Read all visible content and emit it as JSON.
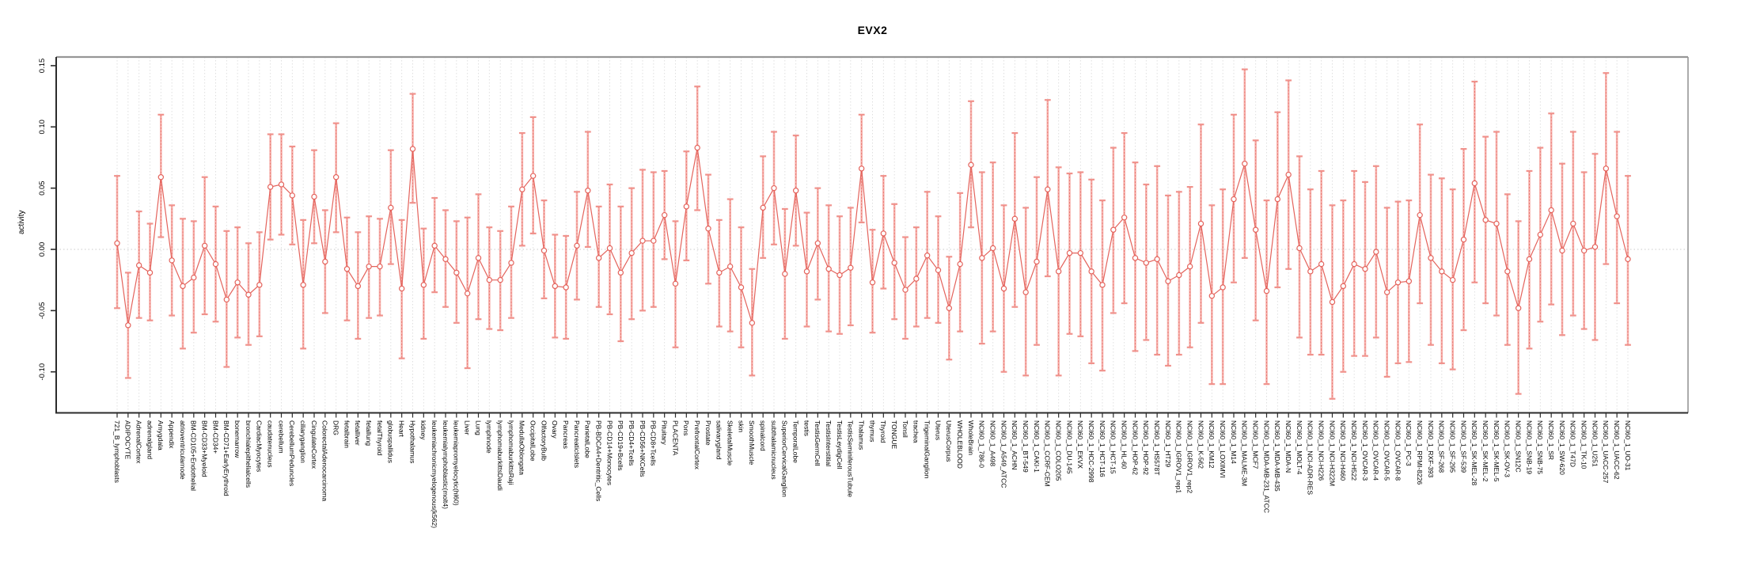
{
  "title": "EVX2",
  "chart_data": {
    "type": "line",
    "title": "EVX2",
    "xlabel": "",
    "ylabel": "activity",
    "ylim": [
      -0.142,
      0.157
    ],
    "y_ticks": [
      -0.1,
      -0.05,
      0.0,
      0.05,
      0.1,
      0.15
    ],
    "y_tick_labels": [
      "-0.10",
      "-0.05",
      "0.00",
      "0.05",
      "0.10",
      "0.15"
    ],
    "legend": "none",
    "grid": "vertical dotted gridline per category; dotted horizontal line at zero",
    "point_style": "open-circle with error bars",
    "colors": {
      "series": "#e4635c",
      "error_bar_stem": "#f6b0ab",
      "error_bar_cap": "#f0928c",
      "gridline": "#dcdcdc",
      "zero_line": "#c9c9c9",
      "axis": "#2b2b2b",
      "border": "#969696",
      "background": "#ffffff"
    },
    "categories": [
      "721_B_lymphoblasts",
      "ADIPOCYTE",
      "AdrenalCortex",
      "adrenalgland",
      "Amygdala",
      "Appendix",
      "atrioventricularnode",
      "BM-CD105+Endothelial",
      "BM-CD33+Myeloid",
      "BM-CD34+",
      "BM-CD71+EarlyErythroid",
      "bonemarrow",
      "bronchialepithelialcells",
      "CardiacMyocytes",
      "caudatenucleus",
      "cerebellum",
      "CerebellumPeduncles",
      "ciliaryganglion",
      "CingulateCortex",
      "ColorectalAdenocarcinoma",
      "DRG",
      "fetalbrain",
      "fetalliver",
      "fetallung",
      "fetalThyroid",
      "globuspallidus",
      "Heart",
      "Hypothalamus",
      "kidney",
      "leukemiachronicmyelogenous(k562)",
      "leukemialymphoblastic(molt4)",
      "leukemiapromyelocytic(hl60)",
      "Liver",
      "Lung",
      "lymphnode",
      "lymphomaburkittsDaudi",
      "lymphomaburkittsRaji",
      "MedullaOblongata",
      "OccipitalLobe",
      "OlfactoryBulb",
      "Ovary",
      "Pancreas",
      "PancreaticIslets",
      "ParietalLobe",
      "PB-BDCA4+Dentritic_Cells",
      "PB-CD14+Monocytes",
      "PB-CD19+Bcells",
      "PB-CD4+Tcells",
      "PB-CD56+NKCells",
      "PB-CD8+Tcells",
      "Pituitary",
      "PLACENTA",
      "Pons",
      "PrefrontalCortex",
      "Prostate",
      "salivarygland",
      "SkeletalMuscle",
      "skin",
      "SmoothMuscle",
      "spinalcord",
      "subthalamicnucleus",
      "SuperiorCervicalGanglion",
      "TemporalLobe",
      "testis",
      "TestisGermCell",
      "TestisInterstitial",
      "TestisLeydigCell",
      "TestisSeminiferousTubule",
      "Thalamus",
      "thymus",
      "Thyroid",
      "TONGUE",
      "Tonsil",
      "trachea",
      "TrigeminalGanglion",
      "Uterus",
      "UterusCorpus",
      "WHOLEBLOOD",
      "WholeBrain",
      "NCI60_1_786-0",
      "NCI60_1_A498",
      "NCI60_1_A549_ATCC",
      "NCI60_1_ACHN",
      "NCI60_1_BT-549",
      "NCI60_1_CAKI-1",
      "NCI60_1_CCRF-CEM",
      "NCI60_1_COLO205",
      "NCI60_1_DU-145",
      "NCI60_1_EKVX",
      "NCI60_1_HCC-2998",
      "NCI60_1_HCT-116",
      "NCI60_1_HCT-15",
      "NCI60_1_HL-60",
      "NCI60_1_HOP-62",
      "NCI60_1_HOP-92",
      "NCI60_1_HS578T",
      "NCI60_1_HT29",
      "NCI60_1_IGROV1_rep1",
      "NCI60_1_IGROV1_rep2",
      "NCI60_1_K-562",
      "NCI60_1_KM12",
      "NCI60_1_LOXIMVI",
      "NCI60_1_M14",
      "NCI60_1_MALME-3M",
      "NCI60_1_MCF7",
      "NCI60_1_MDA-MB-231_ATCC",
      "NCI60_1_MDA-MB-435",
      "NCI60_1_MDA-N",
      "NCI60_1_MOLT-4",
      "NCI60_1_NCI-ADR-RES",
      "NCI60_1_NCI-H226",
      "NCI60_1_NCI-H322M",
      "NCI60_1_NCI-H460",
      "NCI60_1_NCI-H522",
      "NCI60_1_OVCAR-3",
      "NCI60_1_OVCAR-4",
      "NCI60_1_OVCAR-5",
      "NCI60_1_OVCAR-8",
      "NCI60_1_PC-3",
      "NCI60_1_RPMI-8226",
      "NCI60_1_RXF-393",
      "NCI60_1_SF-268",
      "NCI60_1_SF-295",
      "NCI60_1_SF-539",
      "NCI60_1_SK-MEL-28",
      "NCI60_1_SK-MEL-2",
      "NCI60_1_SK-MEL-5",
      "NCI60_1_SK-OV-3",
      "NCI60_1_SN12C",
      "NCI60_1_SNB-19",
      "NCI60_1_SNB-75",
      "NCI60_1_SR",
      "NCI60_1_SW-620",
      "NCI60_1_T47D",
      "NCI60_1_TK-10",
      "NCI60_1_U251",
      "NCI60_1_UACC-257",
      "NCI60_1_UACC-62",
      "NCI60_1_UO-31"
    ],
    "series": [
      {
        "name": "activity",
        "values": [
          0.005,
          -0.062,
          -0.013,
          -0.019,
          0.059,
          -0.009,
          -0.03,
          -0.023,
          0.003,
          -0.012,
          -0.041,
          -0.027,
          -0.037,
          -0.029,
          0.051,
          0.053,
          0.044,
          -0.029,
          0.043,
          -0.01,
          0.059,
          -0.016,
          -0.03,
          -0.014,
          -0.014,
          0.034,
          -0.032,
          0.082,
          -0.029,
          0.003,
          -0.008,
          -0.019,
          -0.036,
          -0.007,
          -0.025,
          -0.025,
          -0.011,
          0.049,
          0.06,
          -0.001,
          -0.03,
          -0.031,
          0.003,
          0.048,
          -0.007,
          0.001,
          -0.019,
          -0.003,
          0.007,
          0.007,
          0.028,
          -0.028,
          0.035,
          0.083,
          0.017,
          -0.019,
          -0.014,
          -0.031,
          -0.06,
          0.034,
          0.05,
          -0.02,
          0.048,
          -0.018,
          0.005,
          -0.016,
          -0.021,
          -0.015,
          0.066,
          -0.027,
          0.013,
          -0.011,
          -0.033,
          -0.024,
          -0.005,
          -0.017,
          -0.048,
          -0.012,
          0.069,
          -0.007,
          0.001,
          -0.032,
          0.025,
          -0.035,
          -0.01,
          0.049,
          -0.018,
          -0.003,
          -0.003,
          -0.018,
          -0.029,
          0.016,
          0.026,
          -0.007,
          -0.011,
          -0.008,
          -0.026,
          -0.021,
          -0.014,
          0.021,
          -0.038,
          -0.031,
          0.041,
          0.07,
          0.016,
          -0.034,
          0.041,
          0.061,
          0.001,
          -0.018,
          -0.012,
          -0.043,
          -0.03,
          -0.012,
          -0.016,
          -0.002,
          -0.035,
          -0.027,
          -0.026,
          0.028,
          -0.007,
          -0.018,
          -0.025,
          0.008,
          0.054,
          0.024,
          0.021,
          -0.018,
          -0.048,
          -0.008,
          0.012,
          0.032,
          -0.001,
          0.021,
          -0.001,
          0.002,
          0.066,
          0.027,
          -0.008
        ],
        "error_low": [
          -0.048,
          -0.105,
          -0.056,
          -0.058,
          0.01,
          -0.054,
          -0.081,
          -0.068,
          -0.053,
          -0.059,
          -0.096,
          -0.072,
          -0.078,
          -0.071,
          0.008,
          0.012,
          0.004,
          -0.081,
          0.005,
          -0.052,
          0.014,
          -0.058,
          -0.073,
          -0.056,
          -0.054,
          -0.012,
          -0.089,
          0.038,
          -0.073,
          -0.035,
          -0.047,
          -0.06,
          -0.097,
          -0.057,
          -0.065,
          -0.066,
          -0.056,
          0.003,
          0.013,
          -0.04,
          -0.072,
          -0.073,
          -0.041,
          0.002,
          -0.047,
          -0.053,
          -0.075,
          -0.057,
          -0.05,
          -0.047,
          -0.008,
          -0.08,
          -0.009,
          0.032,
          -0.028,
          -0.063,
          -0.067,
          -0.08,
          -0.103,
          -0.007,
          0.004,
          -0.073,
          0.003,
          -0.063,
          -0.041,
          -0.067,
          -0.069,
          -0.062,
          0.022,
          -0.068,
          -0.032,
          -0.057,
          -0.073,
          -0.063,
          -0.056,
          -0.06,
          -0.09,
          -0.067,
          0.018,
          -0.077,
          -0.067,
          -0.1,
          -0.047,
          -0.103,
          -0.078,
          -0.022,
          -0.103,
          -0.069,
          -0.071,
          -0.093,
          -0.099,
          -0.052,
          -0.044,
          -0.083,
          -0.074,
          -0.086,
          -0.095,
          -0.086,
          -0.08,
          -0.06,
          -0.11,
          -0.11,
          -0.027,
          -0.007,
          -0.058,
          -0.11,
          -0.031,
          -0.016,
          -0.072,
          -0.086,
          -0.086,
          -0.122,
          -0.1,
          -0.087,
          -0.087,
          -0.072,
          -0.104,
          -0.093,
          -0.092,
          -0.044,
          -0.078,
          -0.093,
          -0.098,
          -0.066,
          -0.027,
          -0.044,
          -0.054,
          -0.078,
          -0.118,
          -0.081,
          -0.059,
          -0.045,
          -0.07,
          -0.054,
          -0.065,
          -0.074,
          -0.012,
          -0.044,
          -0.078
        ],
        "error_high": [
          0.06,
          -0.019,
          0.031,
          0.021,
          0.11,
          0.036,
          0.025,
          0.023,
          0.059,
          0.035,
          0.015,
          0.018,
          0.005,
          0.014,
          0.094,
          0.094,
          0.084,
          0.024,
          0.081,
          0.032,
          0.103,
          0.026,
          0.014,
          0.027,
          0.025,
          0.081,
          0.024,
          0.127,
          0.017,
          0.042,
          0.032,
          0.023,
          0.026,
          0.045,
          0.018,
          0.015,
          0.035,
          0.095,
          0.108,
          0.04,
          0.012,
          0.011,
          0.047,
          0.096,
          0.035,
          0.053,
          0.035,
          0.05,
          0.065,
          0.063,
          0.064,
          0.023,
          0.08,
          0.133,
          0.061,
          0.024,
          0.041,
          0.018,
          -0.016,
          0.076,
          0.096,
          0.033,
          0.093,
          0.03,
          0.05,
          0.036,
          0.027,
          0.034,
          0.11,
          0.016,
          0.06,
          0.037,
          0.01,
          0.018,
          0.047,
          0.027,
          -0.006,
          0.046,
          0.121,
          0.063,
          0.071,
          0.036,
          0.095,
          0.034,
          0.059,
          0.122,
          0.067,
          0.062,
          0.063,
          0.057,
          0.04,
          0.083,
          0.095,
          0.071,
          0.053,
          0.068,
          0.044,
          0.047,
          0.051,
          0.102,
          0.036,
          0.049,
          0.11,
          0.147,
          0.089,
          0.04,
          0.112,
          0.138,
          0.076,
          0.049,
          0.064,
          0.036,
          0.04,
          0.064,
          0.055,
          0.068,
          0.034,
          0.039,
          0.04,
          0.102,
          0.061,
          0.058,
          0.049,
          0.082,
          0.137,
          0.092,
          0.096,
          0.045,
          0.023,
          0.064,
          0.083,
          0.111,
          0.07,
          0.096,
          0.063,
          0.078,
          0.144,
          0.096,
          0.06
        ]
      }
    ]
  }
}
